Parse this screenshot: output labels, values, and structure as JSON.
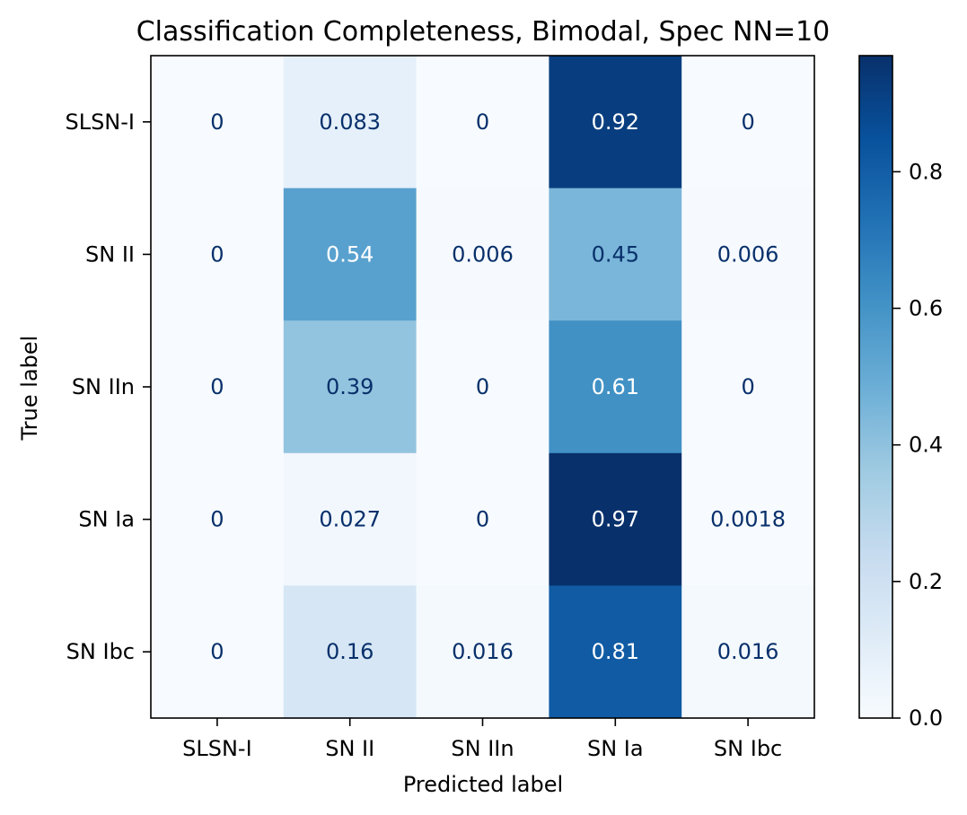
{
  "chart_data": {
    "type": "heatmap",
    "title": "Classification Completeness, Bimodal, Spec NN=10",
    "xlabel": "Predicted label",
    "ylabel": "True label",
    "x_categories": [
      "SLSN-I",
      "SN II",
      "SN IIn",
      "SN Ia",
      "SN Ibc"
    ],
    "y_categories": [
      "SLSN-I",
      "SN II",
      "SN IIn",
      "SN Ia",
      "SN Ibc"
    ],
    "values": [
      [
        0,
        0.083,
        0,
        0.92,
        0
      ],
      [
        0,
        0.54,
        0.006,
        0.45,
        0.006
      ],
      [
        0,
        0.39,
        0,
        0.61,
        0
      ],
      [
        0,
        0.027,
        0,
        0.97,
        0.0018
      ],
      [
        0,
        0.16,
        0.016,
        0.81,
        0.016
      ]
    ],
    "cell_labels": [
      [
        "0",
        "0.083",
        "0",
        "0.92",
        "0"
      ],
      [
        "0",
        "0.54",
        "0.006",
        "0.45",
        "0.006"
      ],
      [
        "0",
        "0.39",
        "0",
        "0.61",
        "0"
      ],
      [
        "0",
        "0.027",
        "0",
        "0.97",
        "0.0018"
      ],
      [
        "0",
        "0.16",
        "0.016",
        "0.81",
        "0.016"
      ]
    ],
    "colormap": "Blues",
    "colorbar": {
      "range": [
        0,
        0.97
      ],
      "ticks": [
        0.0,
        0.2,
        0.4,
        0.6,
        0.8
      ],
      "tick_labels": [
        "0.0",
        "0.2",
        "0.4",
        "0.6",
        "0.8"
      ]
    },
    "grid": false
  }
}
